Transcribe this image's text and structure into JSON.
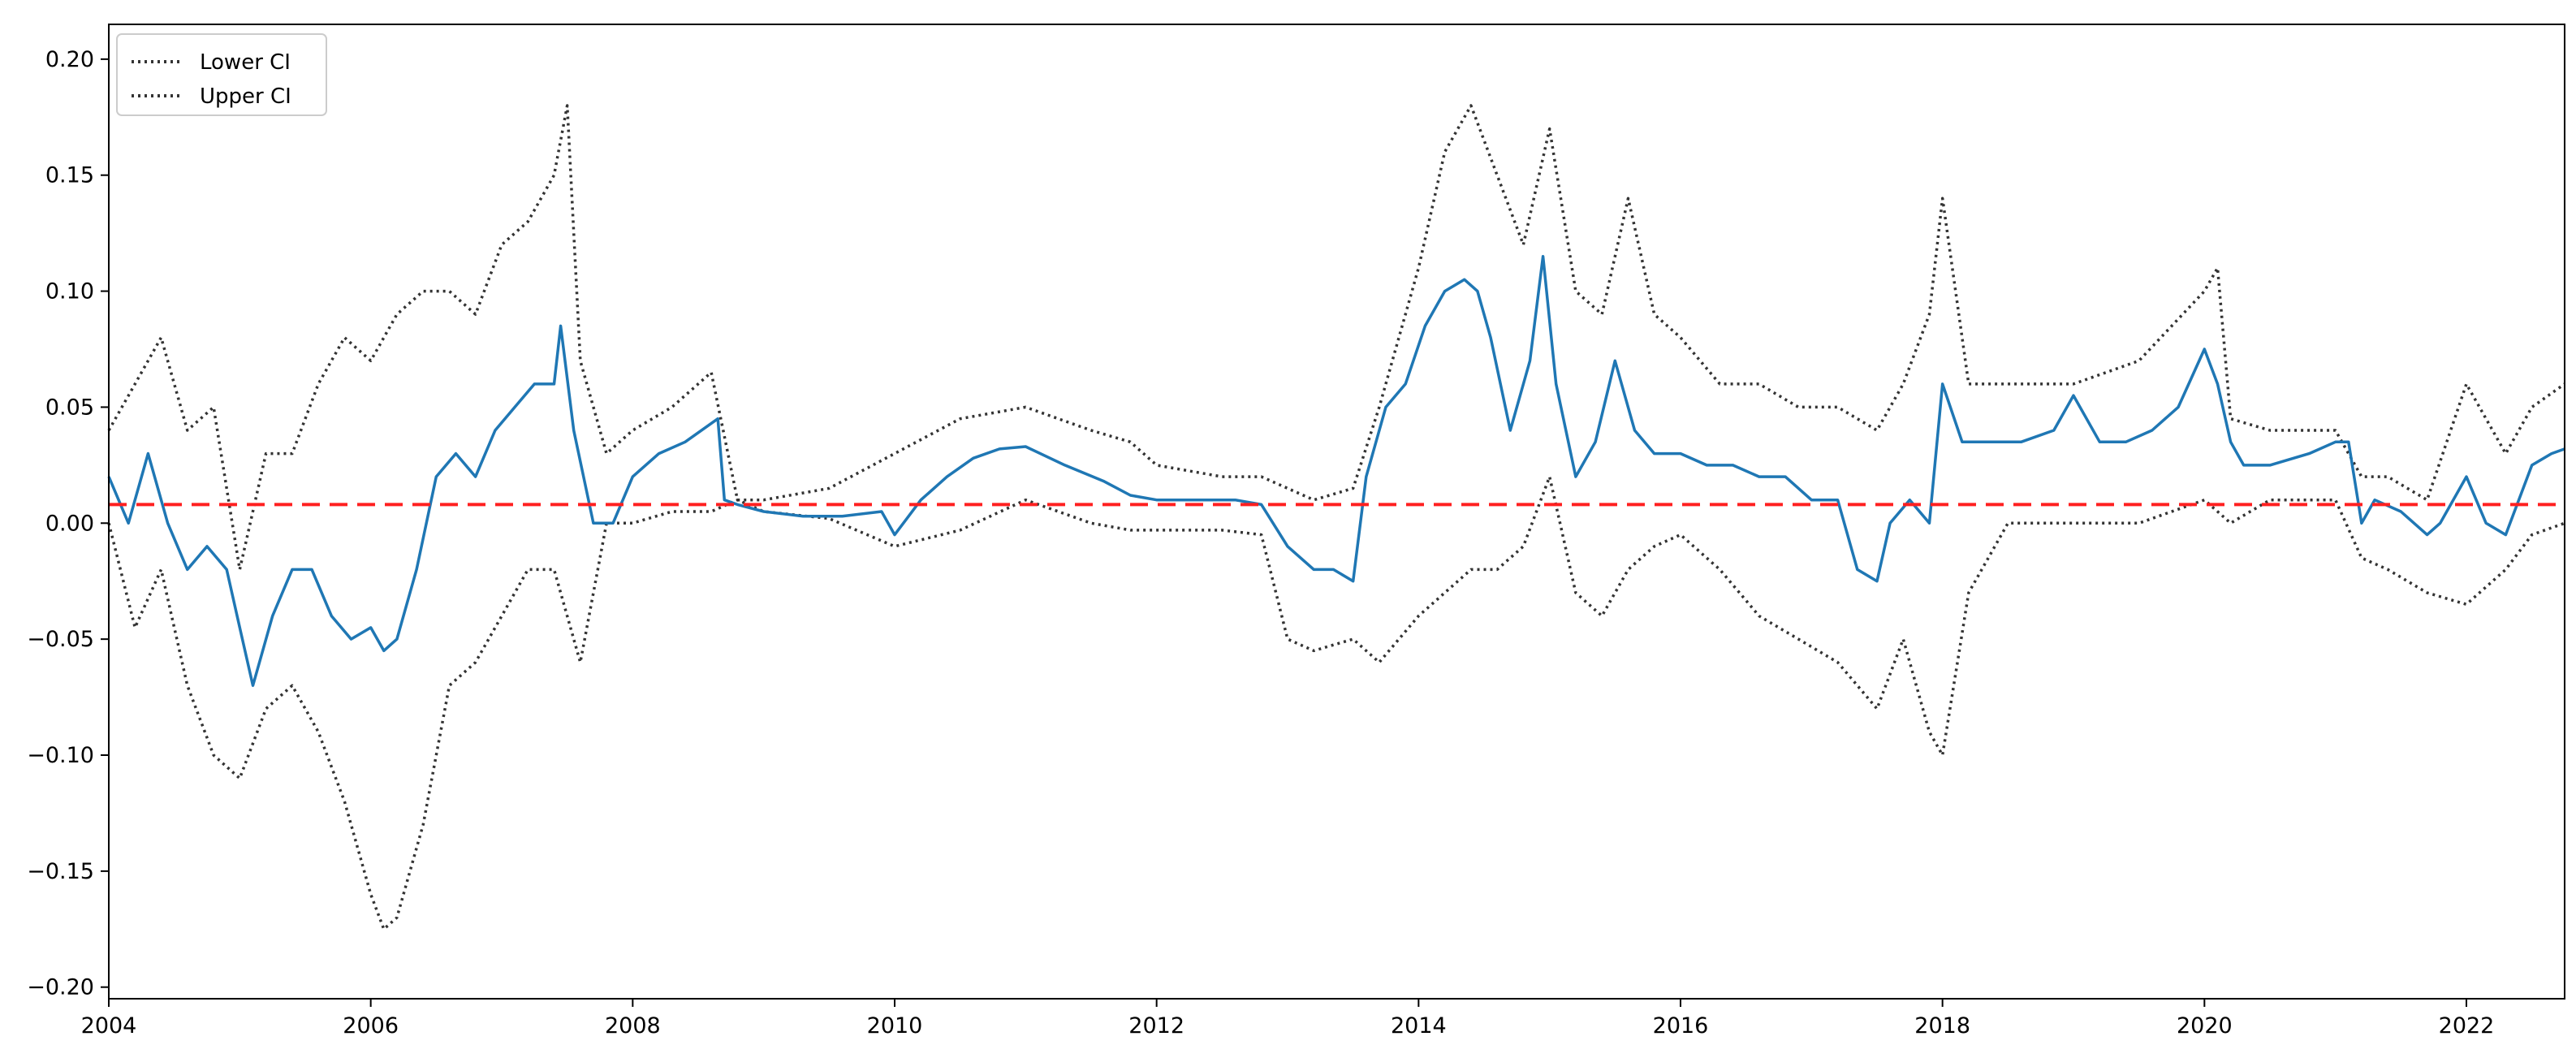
{
  "chart_data": {
    "type": "line",
    "title": "",
    "xlabel": "",
    "ylabel": "",
    "xlim": [
      2004.0,
      2022.75
    ],
    "ylim": [
      -0.205,
      0.215
    ],
    "grid": false,
    "legend_placement": "top-left",
    "x_ticks": [
      2004,
      2006,
      2008,
      2010,
      2012,
      2014,
      2016,
      2018,
      2020,
      2022
    ],
    "x_tick_labels": [
      "2004",
      "2006",
      "2008",
      "2010",
      "2012",
      "2014",
      "2016",
      "2018",
      "2020",
      "2022"
    ],
    "y_ticks": [
      -0.2,
      -0.15,
      -0.1,
      -0.05,
      0.0,
      0.05,
      0.1,
      0.15,
      0.2
    ],
    "y_tick_labels": [
      "−0.20",
      "−0.15",
      "−0.10",
      "−0.05",
      "0.00",
      "0.05",
      "0.10",
      "0.15",
      "0.20"
    ],
    "reference_line": {
      "y": 0.008,
      "color": "#ff2020",
      "style": "dashed"
    },
    "series": [
      {
        "name": "Lower CI",
        "legend": true,
        "color": "#333333",
        "style": "dotted",
        "x": [
          2004.0,
          2004.2,
          2004.4,
          2004.6,
          2004.8,
          2005.0,
          2005.2,
          2005.4,
          2005.6,
          2005.8,
          2006.0,
          2006.1,
          2006.2,
          2006.4,
          2006.6,
          2006.8,
          2007.0,
          2007.2,
          2007.4,
          2007.6,
          2007.8,
          2008.0,
          2008.3,
          2008.6,
          2008.8,
          2009.0,
          2009.5,
          2010.0,
          2010.5,
          2011.0,
          2011.5,
          2011.8,
          2012.0,
          2012.5,
          2012.8,
          2013.0,
          2013.2,
          2013.5,
          2013.7,
          2014.0,
          2014.2,
          2014.4,
          2014.6,
          2014.8,
          2015.0,
          2015.2,
          2015.4,
          2015.6,
          2015.8,
          2016.0,
          2016.3,
          2016.6,
          2016.9,
          2017.2,
          2017.5,
          2017.7,
          2017.9,
          2018.0,
          2018.2,
          2018.5,
          2019.0,
          2019.5,
          2020.0,
          2020.1,
          2020.2,
          2020.5,
          2021.0,
          2021.2,
          2021.4,
          2021.7,
          2022.0,
          2022.3,
          2022.5,
          2022.75
        ],
        "y": [
          0.0,
          -0.045,
          -0.02,
          -0.07,
          -0.1,
          -0.11,
          -0.08,
          -0.07,
          -0.09,
          -0.12,
          -0.16,
          -0.175,
          -0.17,
          -0.13,
          -0.07,
          -0.06,
          -0.04,
          -0.02,
          -0.02,
          -0.06,
          0.0,
          0.0,
          0.005,
          0.005,
          0.01,
          0.005,
          0.002,
          -0.01,
          -0.003,
          0.01,
          0.0,
          -0.003,
          -0.003,
          -0.003,
          -0.005,
          -0.05,
          -0.055,
          -0.05,
          -0.06,
          -0.04,
          -0.03,
          -0.02,
          -0.02,
          -0.01,
          0.02,
          -0.03,
          -0.04,
          -0.02,
          -0.01,
          -0.005,
          -0.02,
          -0.04,
          -0.05,
          -0.06,
          -0.08,
          -0.05,
          -0.09,
          -0.1,
          -0.03,
          0.0,
          0.0,
          0.0,
          0.01,
          0.005,
          0.0,
          0.01,
          0.01,
          -0.015,
          -0.02,
          -0.03,
          -0.035,
          -0.02,
          -0.005,
          0.0
        ]
      },
      {
        "name": "Upper CI",
        "legend": true,
        "color": "#333333",
        "style": "dotted",
        "x": [
          2004.0,
          2004.2,
          2004.4,
          2004.6,
          2004.8,
          2005.0,
          2005.2,
          2005.4,
          2005.6,
          2005.8,
          2006.0,
          2006.2,
          2006.4,
          2006.6,
          2006.8,
          2007.0,
          2007.2,
          2007.4,
          2007.5,
          2007.6,
          2007.8,
          2008.0,
          2008.3,
          2008.6,
          2008.8,
          2009.0,
          2009.5,
          2010.0,
          2010.5,
          2011.0,
          2011.5,
          2011.8,
          2012.0,
          2012.5,
          2012.8,
          2013.0,
          2013.2,
          2013.5,
          2013.7,
          2014.0,
          2014.2,
          2014.4,
          2014.6,
          2014.8,
          2015.0,
          2015.2,
          2015.4,
          2015.6,
          2015.8,
          2016.0,
          2016.3,
          2016.6,
          2016.9,
          2017.2,
          2017.5,
          2017.7,
          2017.9,
          2018.0,
          2018.2,
          2018.5,
          2019.0,
          2019.5,
          2020.0,
          2020.1,
          2020.2,
          2020.5,
          2021.0,
          2021.2,
          2021.4,
          2021.7,
          2022.0,
          2022.3,
          2022.5,
          2022.75
        ],
        "y": [
          0.04,
          0.06,
          0.08,
          0.04,
          0.05,
          -0.02,
          0.03,
          0.03,
          0.06,
          0.08,
          0.07,
          0.09,
          0.1,
          0.1,
          0.09,
          0.12,
          0.13,
          0.15,
          0.18,
          0.07,
          0.03,
          0.04,
          0.05,
          0.065,
          0.01,
          0.01,
          0.015,
          0.03,
          0.045,
          0.05,
          0.04,
          0.035,
          0.025,
          0.02,
          0.02,
          0.015,
          0.01,
          0.015,
          0.05,
          0.11,
          0.16,
          0.18,
          0.15,
          0.12,
          0.17,
          0.1,
          0.09,
          0.14,
          0.09,
          0.08,
          0.06,
          0.06,
          0.05,
          0.05,
          0.04,
          0.06,
          0.09,
          0.14,
          0.06,
          0.06,
          0.06,
          0.07,
          0.1,
          0.11,
          0.045,
          0.04,
          0.04,
          0.02,
          0.02,
          0.01,
          0.06,
          0.03,
          0.05,
          0.06
        ]
      },
      {
        "name": "",
        "legend": false,
        "color": "#1f77b4",
        "style": "solid",
        "x": [
          2004.0,
          2004.15,
          2004.3,
          2004.45,
          2004.6,
          2004.75,
          2004.9,
          2005.0,
          2005.1,
          2005.25,
          2005.4,
          2005.55,
          2005.7,
          2005.85,
          2006.0,
          2006.1,
          2006.2,
          2006.35,
          2006.5,
          2006.65,
          2006.8,
          2006.95,
          2007.1,
          2007.25,
          2007.4,
          2007.45,
          2007.55,
          2007.7,
          2007.85,
          2008.0,
          2008.2,
          2008.4,
          2008.65,
          2008.7,
          2008.8,
          2009.0,
          2009.3,
          2009.6,
          2009.9,
          2010.0,
          2010.2,
          2010.4,
          2010.6,
          2010.8,
          2011.0,
          2011.3,
          2011.6,
          2011.8,
          2012.0,
          2012.3,
          2012.6,
          2012.8,
          2013.0,
          2013.2,
          2013.35,
          2013.5,
          2013.6,
          2013.75,
          2013.9,
          2014.05,
          2014.2,
          2014.35,
          2014.45,
          2014.55,
          2014.7,
          2014.85,
          2014.95,
          2015.05,
          2015.2,
          2015.35,
          2015.5,
          2015.65,
          2015.8,
          2016.0,
          2016.2,
          2016.4,
          2016.6,
          2016.8,
          2017.0,
          2017.2,
          2017.35,
          2017.5,
          2017.6,
          2017.75,
          2017.9,
          2018.0,
          2018.15,
          2018.35,
          2018.6,
          2018.85,
          2019.0,
          2019.2,
          2019.4,
          2019.6,
          2019.8,
          2020.0,
          2020.1,
          2020.2,
          2020.3,
          2020.5,
          2020.8,
          2021.0,
          2021.1,
          2021.2,
          2021.3,
          2021.5,
          2021.7,
          2021.8,
          2022.0,
          2022.15,
          2022.3,
          2022.5,
          2022.65,
          2022.75
        ],
        "y": [
          0.02,
          0.0,
          0.03,
          0.0,
          -0.02,
          -0.01,
          -0.02,
          -0.045,
          -0.07,
          -0.04,
          -0.02,
          -0.02,
          -0.04,
          -0.05,
          -0.045,
          -0.055,
          -0.05,
          -0.02,
          0.02,
          0.03,
          0.02,
          0.04,
          0.05,
          0.06,
          0.06,
          0.085,
          0.04,
          0.0,
          0.0,
          0.02,
          0.03,
          0.035,
          0.045,
          0.01,
          0.008,
          0.005,
          0.003,
          0.003,
          0.005,
          -0.005,
          0.01,
          0.02,
          0.028,
          0.032,
          0.033,
          0.025,
          0.018,
          0.012,
          0.01,
          0.01,
          0.01,
          0.008,
          -0.01,
          -0.02,
          -0.02,
          -0.025,
          0.02,
          0.05,
          0.06,
          0.085,
          0.1,
          0.105,
          0.1,
          0.08,
          0.04,
          0.07,
          0.115,
          0.06,
          0.02,
          0.035,
          0.07,
          0.04,
          0.03,
          0.03,
          0.025,
          0.025,
          0.02,
          0.02,
          0.01,
          0.01,
          -0.02,
          -0.025,
          0.0,
          0.01,
          0.0,
          0.06,
          0.035,
          0.035,
          0.035,
          0.04,
          0.055,
          0.035,
          0.035,
          0.04,
          0.05,
          0.075,
          0.06,
          0.035,
          0.025,
          0.025,
          0.03,
          0.035,
          0.035,
          0.0,
          0.01,
          0.005,
          -0.005,
          0.0,
          0.02,
          0.0,
          -0.005,
          0.025,
          0.03,
          0.032
        ]
      }
    ]
  }
}
